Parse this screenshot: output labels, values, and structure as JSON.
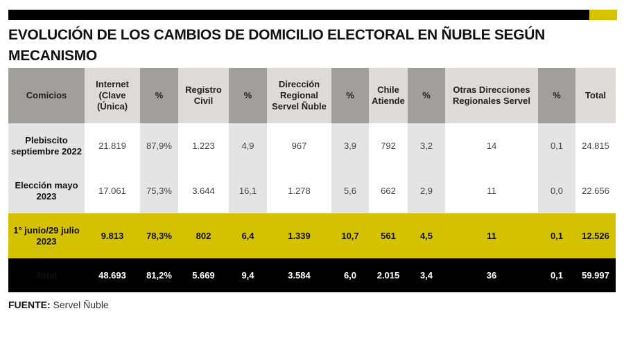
{
  "title": "EVOLUCIÓN DE LOS CAMBIOS DE DOMICILIO ELECTORAL EN ÑUBLE SEGÚN MECANISMO",
  "colors": {
    "accent": "#d4c200",
    "header_dark": "#a19f9c",
    "header_light": "#dcdbda"
  },
  "headers": [
    "Comicios",
    "Internet (Clave (Única)",
    "%",
    "Registro Civil",
    "%",
    "Dirección Regional Servel Ñuble",
    "%",
    "Chile Atiende",
    "%",
    "Otras Direcciones Regionales Servel",
    "%",
    "Total"
  ],
  "rows": [
    [
      "Plebiscito septiembre 2022",
      "21.819",
      "87,9%",
      "1.223",
      "4,9",
      "967",
      "3,9",
      "792",
      "3,2",
      "14",
      "0,1",
      "24.815"
    ],
    [
      "Elección mayo 2023",
      "17.061",
      "75,3%",
      "3.644",
      "16,1",
      "1.278",
      "5,6",
      "662",
      "2,9",
      "11",
      "0,0",
      "22.656"
    ],
    [
      "1° junio/29 julio 2023",
      "9.813",
      "78,3%",
      "802",
      "6,4",
      "1.339",
      "10,7",
      "561",
      "4,5",
      "11",
      "0,1",
      "12.526"
    ],
    [
      "Total",
      "48.693",
      "81,2%",
      "5.669",
      "9,4",
      "3.584",
      "6,0",
      "2.015",
      "3,4",
      "36",
      "0,1",
      "59.997"
    ]
  ],
  "source": {
    "label": "FUENTE:",
    "value": "Servel Ñuble"
  }
}
